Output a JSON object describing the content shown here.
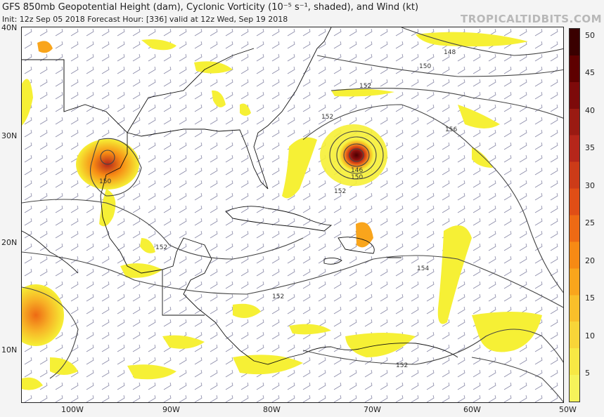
{
  "header": {
    "title": "GFS 850mb Geopotential Height (dam), Cyclonic Vorticity (10⁻⁵ s⁻¹, shaded), and Wind (kt)",
    "subtitle": "Init: 12z Sep 05 2018   Forecast Hour: [336]   valid at 12z Wed, Sep 19 2018",
    "brand": "TROPICALTIDBITS.COM"
  },
  "axes": {
    "lat_labels": [
      "40N",
      "30N",
      "20N",
      "10N"
    ],
    "lon_labels": [
      "100W",
      "90W",
      "80W",
      "70W",
      "60W",
      "50W"
    ]
  },
  "colorbar": {
    "labels": [
      "50",
      "45",
      "40",
      "35",
      "30",
      "25",
      "20",
      "15",
      "10",
      "5"
    ],
    "colors": [
      "#3a0000",
      "#5e0000",
      "#7d0a0a",
      "#9a1a12",
      "#b5261a",
      "#cc3b18",
      "#e04e16",
      "#ee6a14",
      "#f78a14",
      "#f9a51c",
      "#f9bf2a",
      "#f8d538",
      "#f7e844",
      "#f6f35a"
    ]
  },
  "contour_labels": [
    "148",
    "150",
    "152",
    "152",
    "156",
    "146",
    "150",
    "152",
    "150",
    "152",
    "152",
    "154",
    "152"
  ],
  "colors": {
    "vorticity_low": "#f6f035",
    "vorticity_mid": "#f5a623",
    "vorticity_high": "#7a0000",
    "contour": "#444444",
    "coastline": "#111111"
  }
}
